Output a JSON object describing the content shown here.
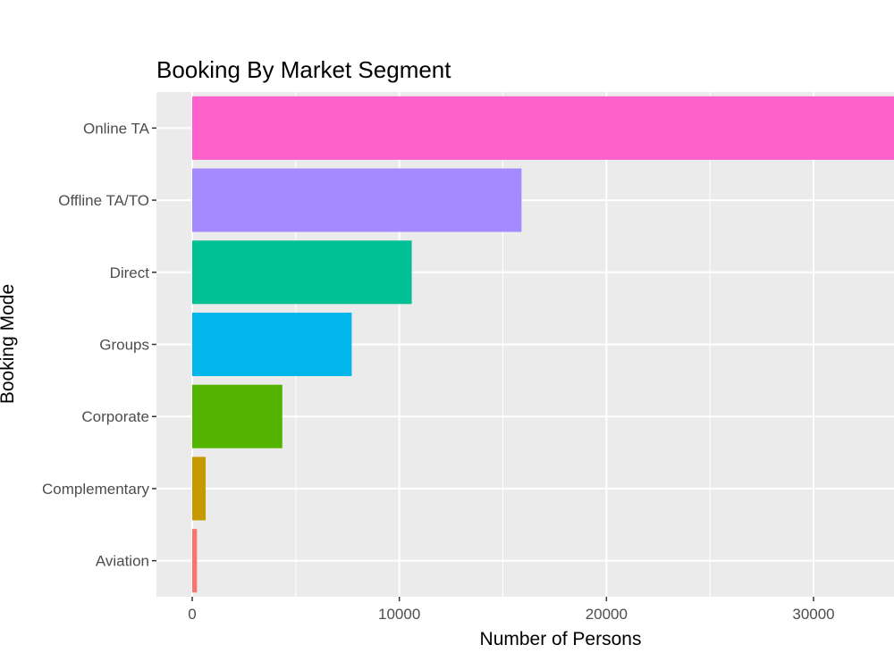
{
  "chart_data": {
    "type": "bar",
    "orientation": "horizontal",
    "title": "Booking By Market Segment",
    "xlabel": "Number of Persons",
    "ylabel": "Booking Mode",
    "categories": [
      "Online TA",
      "Offline TA/TO",
      "Direct",
      "Groups",
      "Corporate",
      "Complementary",
      "Aviation"
    ],
    "values": [
      35700,
      15900,
      10600,
      7700,
      4350,
      650,
      230
    ],
    "colors": [
      "#ff61cc",
      "#a58aff",
      "#00c094",
      "#00b6eb",
      "#53b400",
      "#c49a00",
      "#f8766d"
    ],
    "xlim": [
      -1800,
      34000
    ],
    "xticks": [
      0,
      10000,
      20000,
      30000
    ],
    "xtick_labels": [
      "0",
      "10000",
      "20000",
      "30000"
    ],
    "grid": true,
    "panel_background": "#ebebeb",
    "grid_color": "#ffffff"
  }
}
